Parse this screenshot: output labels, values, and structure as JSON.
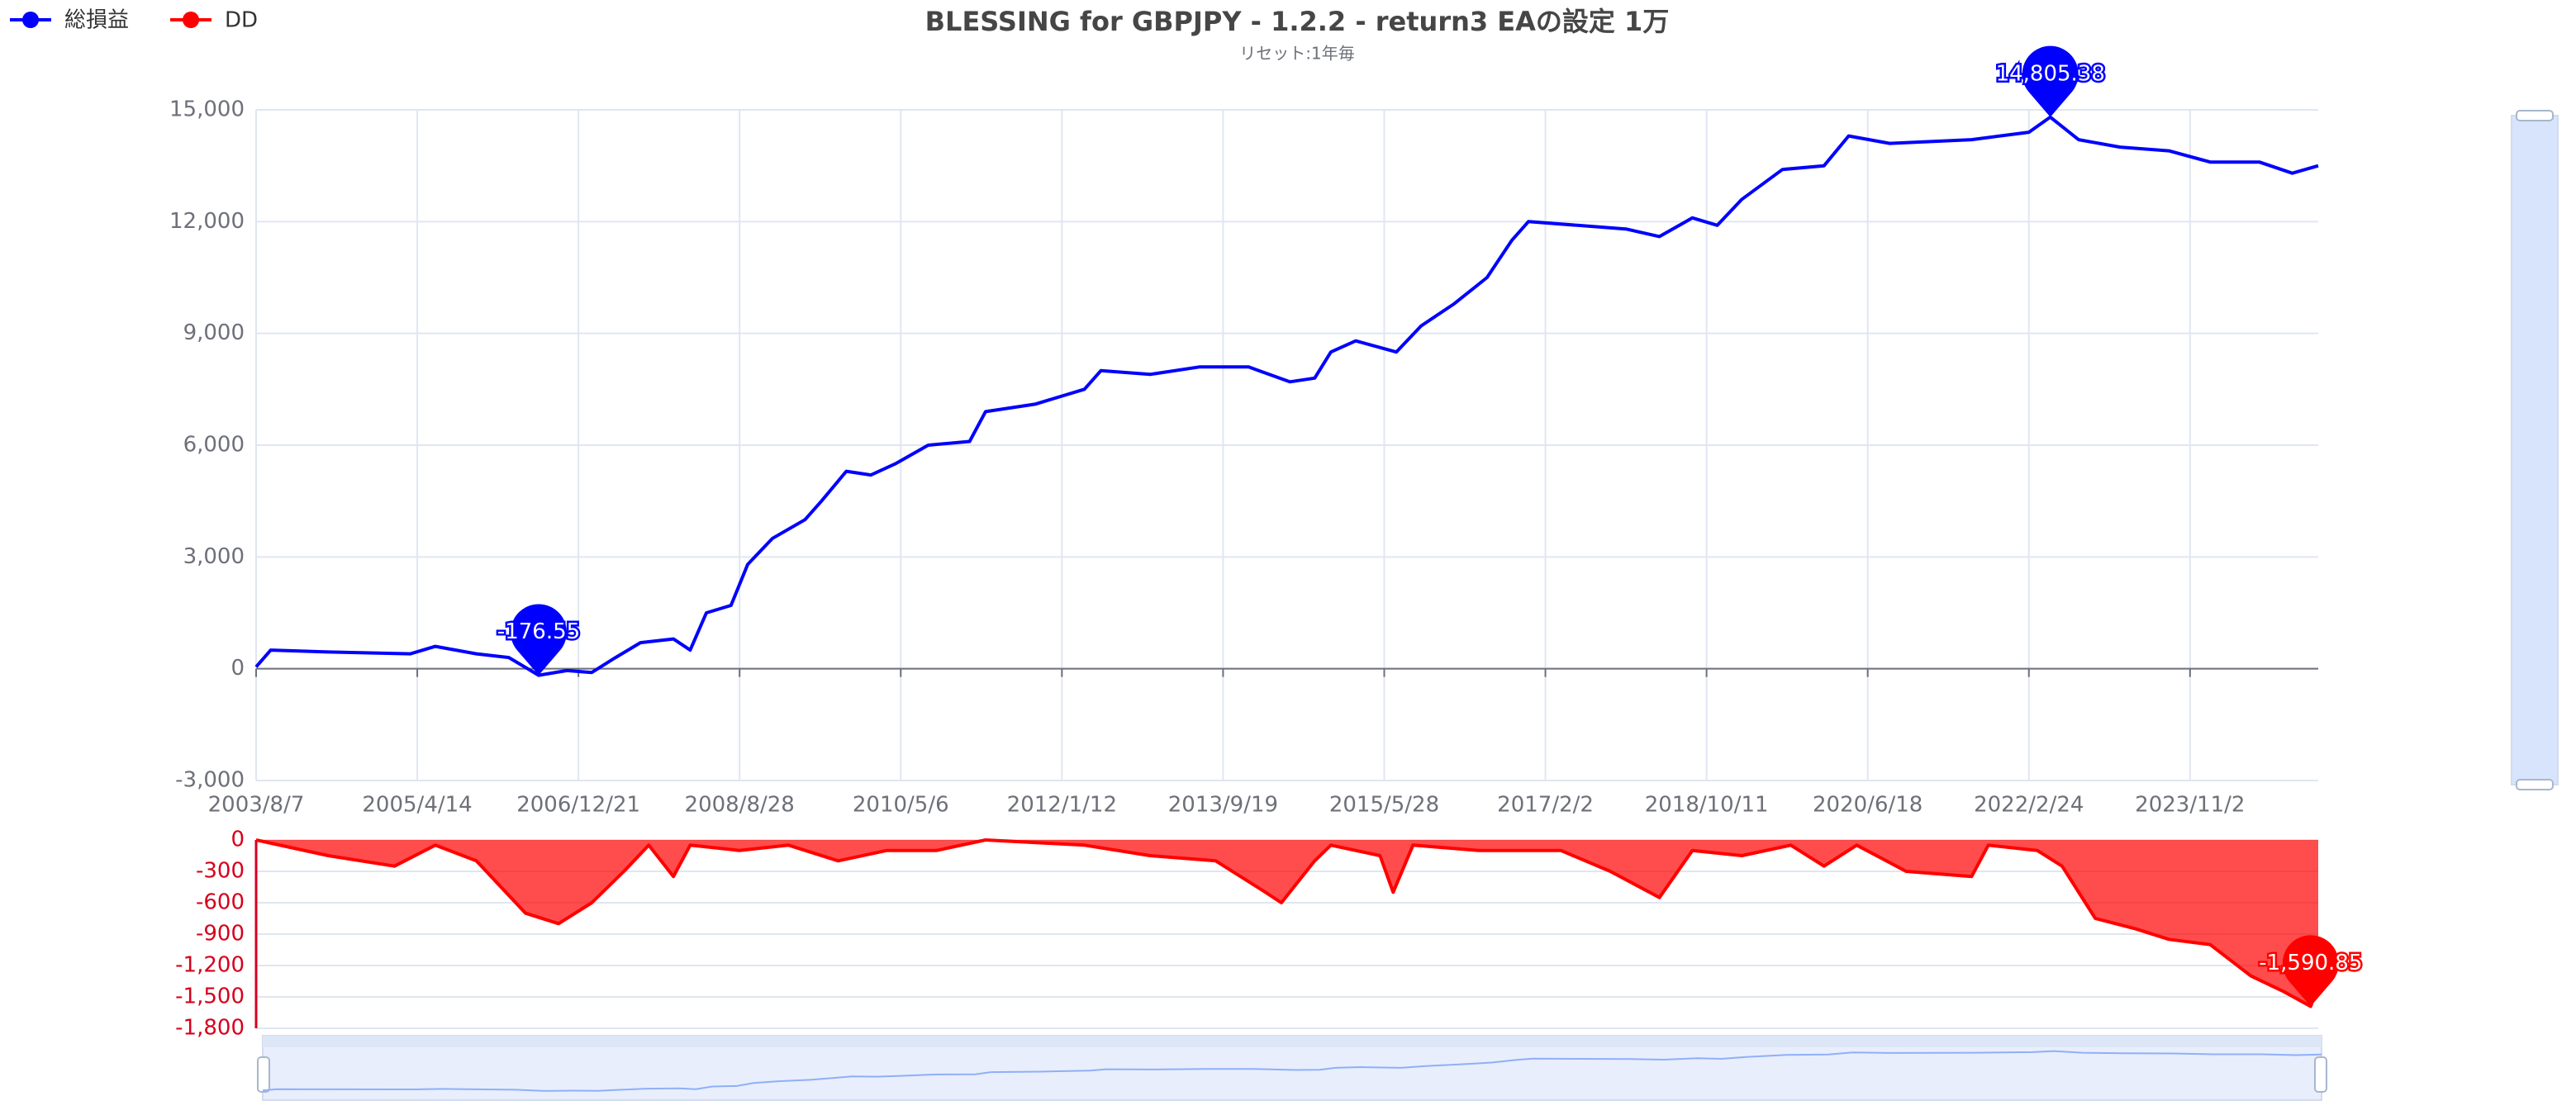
{
  "chart_data": [
    {
      "type": "line",
      "title": "BLESSING for GBPJPY - 1.2.2 - return3 EAの設定 1万",
      "subtitle": "リセット:1年毎",
      "legend": "top-left",
      "grid": true,
      "x": [
        "2003/8/7",
        "2003/10/2",
        "2004/5/9",
        "2005/3/19",
        "2005/6/22",
        "2005/11/26",
        "2006/3/30",
        "2006/7/22",
        "2006/11/7",
        "2007/2/10",
        "2007/5/12",
        "2007/8/15",
        "2007/12/19",
        "2008/2/21",
        "2008/4/23",
        "2008/7/26",
        "2008/9/28",
        "2009/1/1",
        "2009/5/5",
        "2009/7/7",
        "2009/10/10",
        "2010/1/12",
        "2010/4/15",
        "2010/8/19",
        "2011/1/24",
        "2011/3/26",
        "2011/10/1",
        "2012/4/7",
        "2012/6/9",
        "2012/12/14",
        "2013/6/20",
        "2013/12/26",
        "2014/6/1",
        "2014/9/4",
        "2014/11/5",
        "2015/2/8",
        "2015/7/13",
        "2015/10/16",
        "2016/2/20",
        "2016/6/24",
        "2016/9/27",
        "2016/11/29",
        "2017/6/4",
        "2017/12/10",
        "2018/4/14",
        "2018/8/18",
        "2018/11/21",
        "2019/2/23",
        "2019/7/28",
        "2020/1/3",
        "2020/4/6",
        "2020/9/10",
        "2021/7/20",
        "2022/2/24",
        "2022/5/17",
        "2022/9/2",
        "2023/2/7",
        "2023/8/13",
        "2024/1/18",
        "2024/7/24",
        "2024/11/27",
        "2025/3/6"
      ],
      "xlim": [
        "2003/8/7",
        "2025/3/6"
      ],
      "xticks": [
        "2003/8/7",
        "2005/4/14",
        "2006/12/21",
        "2008/8/28",
        "2010/5/6",
        "2012/1/12",
        "2013/9/19",
        "2015/5/28",
        "2017/2/2",
        "2018/10/11",
        "2020/6/18",
        "2022/2/24",
        "2023/11/2"
      ],
      "ylim": [
        -3000,
        15000
      ],
      "yticks": [
        {
          "value": -3000,
          "label": "-3,000"
        },
        0,
        {
          "value": 3000,
          "label": "3,000"
        },
        {
          "value": 6000,
          "label": "6,000"
        },
        {
          "value": 9000,
          "label": "9,000"
        },
        {
          "value": 12000,
          "label": "12,000"
        },
        {
          "value": 15000,
          "label": "15,000"
        }
      ],
      "series": [
        {
          "name": "総損益",
          "color": "#0000ff",
          "values": [
            50,
            500,
            450,
            400,
            600,
            400,
            300,
            -176.55,
            -50,
            -100,
            300,
            700,
            800,
            500,
            1500,
            1700,
            2800,
            3500,
            4000,
            4500,
            5300,
            5200,
            5500,
            6000,
            6100,
            6900,
            7100,
            7500,
            8000,
            7900,
            8100,
            8100,
            7700,
            7800,
            8500,
            8800,
            8500,
            9200,
            9800,
            10500,
            11500,
            12000,
            11900,
            11800,
            11600,
            12100,
            11900,
            12600,
            13400,
            13500,
            14300,
            14100,
            14200,
            14400,
            14805.38,
            14200,
            14000,
            13900,
            13600,
            13600,
            13300,
            13500
          ],
          "value_labels": [
            null,
            null,
            null,
            null,
            null,
            null,
            null,
            "-176.55",
            null,
            null,
            null,
            null,
            null,
            null,
            null,
            null,
            null,
            null,
            null,
            null,
            null,
            null,
            null,
            null,
            null,
            null,
            null,
            null,
            null,
            null,
            null,
            null,
            null,
            null,
            null,
            null,
            null,
            null,
            null,
            null,
            null,
            null,
            null,
            null,
            null,
            null,
            null,
            null,
            null,
            null,
            null,
            null,
            null,
            null,
            "14,805.38",
            null,
            null,
            null,
            null,
            null,
            null,
            null
          ]
        }
      ]
    },
    {
      "type": "area",
      "grid": true,
      "axis_color": "#d6001c",
      "x": [
        "2003/8/7",
        "2004/5/9",
        "2005/1/17",
        "2005/6/22",
        "2005/11/26",
        "2006/6/2",
        "2006/10/6",
        "2007/2/10",
        "2007/6/13",
        "2007/9/16",
        "2007/12/19",
        "2008/2/21",
        "2008/8/27",
        "2009/3/3",
        "2009/9/9",
        "2010/3/14",
        "2010/9/20",
        "2011/3/26",
        "2012/4/7",
        "2012/12/14",
        "2013/8/22",
        "2014/2/28",
        "2014/4/30",
        "2014/9/4",
        "2014/11/5",
        "2015/5/12",
        "2015/7/1",
        "2015/9/15",
        "2016/5/23",
        "2017/4/2",
        "2017/10/8",
        "2018/4/14",
        "2018/8/18",
        "2019/2/23",
        "2019/8/29",
        "2020/1/3",
        "2020/5/7",
        "2020/11/12",
        "2021/7/20",
        "2021/9/22",
        "2022/3/28",
        "2022/7/1",
        "2022/11/5",
        "2023/4/9",
        "2023/8/13",
        "2024/1/18",
        "2024/6/22",
        "2024/10/26",
        "2025/2/5",
        "2025/3/6"
      ],
      "xlim": [
        "2003/8/7",
        "2025/3/6"
      ],
      "ylim": [
        -1800,
        0
      ],
      "yticks": [
        0,
        -300,
        -600,
        -900,
        {
          "value": -1200,
          "label": "-1,200"
        },
        {
          "value": -1500,
          "label": "-1,500"
        },
        {
          "value": -1800,
          "label": "-1,800"
        }
      ],
      "series": [
        {
          "name": "DD",
          "color": "#ff0000",
          "values": [
            0,
            -150,
            -250,
            -50,
            -200,
            -700,
            -800,
            -600,
            -300,
            -50,
            -350,
            -50,
            -100,
            -50,
            -200,
            -100,
            -100,
            0,
            -50,
            -150,
            -200,
            -500,
            -600,
            -200,
            -50,
            -150,
            -500,
            -50,
            -100,
            -100,
            -300,
            -550,
            -100,
            -150,
            -50,
            -250,
            -50,
            -300,
            -350,
            -50,
            -100,
            -250,
            -750,
            -850,
            -950,
            -1000,
            -1300,
            -1450,
            -1590.85,
            -1400
          ],
          "value_labels": [
            null,
            null,
            null,
            null,
            null,
            null,
            null,
            null,
            null,
            null,
            null,
            null,
            null,
            null,
            null,
            null,
            null,
            null,
            null,
            null,
            null,
            null,
            null,
            null,
            null,
            null,
            null,
            null,
            null,
            null,
            null,
            null,
            null,
            null,
            null,
            null,
            null,
            null,
            null,
            null,
            null,
            null,
            null,
            null,
            null,
            null,
            null,
            null,
            "-1,590.85",
            null
          ]
        }
      ]
    }
  ]
}
